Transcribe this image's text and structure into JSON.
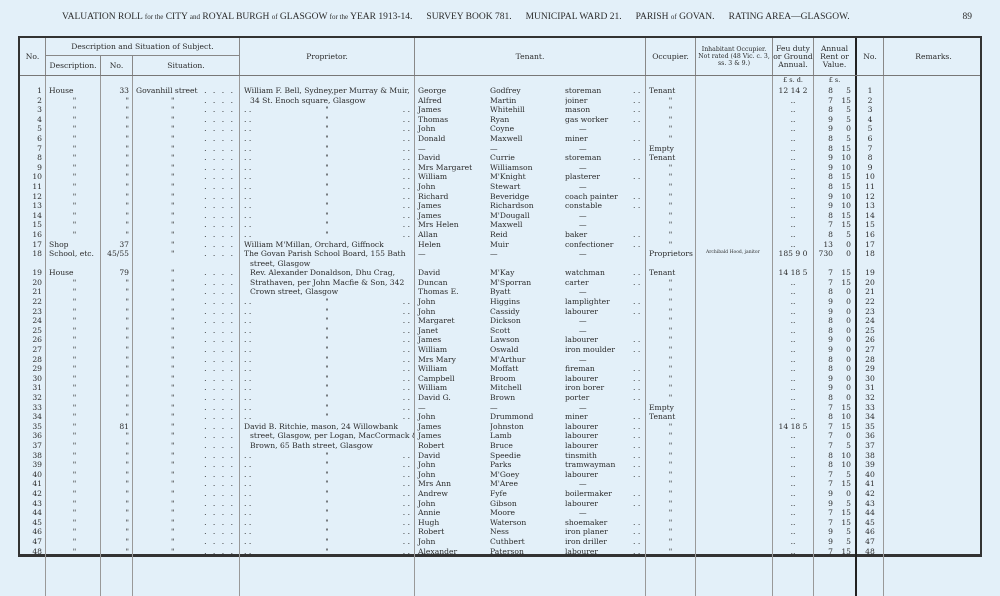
{
  "header": {
    "title": "VALUATION ROLL",
    "t1": "for the",
    "t2": "CITY",
    "t3": "and",
    "t4": "ROYAL BURGH",
    "t5": "of",
    "t6": "GLASGOW",
    "t7": "for the",
    "t8": "YEAR 1913-14.",
    "survey": "SURVEY BOOK 781.",
    "ward": "MUNICIPAL WARD 21.",
    "parish": "PARISH",
    "of": "of",
    "parish_name": "GOVAN.",
    "rating": "RATING AREA—GLASGOW.",
    "page": "89"
  },
  "columns": {
    "no": "No.",
    "desc_group": "Description and Situation of Subject.",
    "description": "Description.",
    "house_no": "No.",
    "situation": "Situation.",
    "proprietor": "Proprietor.",
    "tenant": "Tenant.",
    "occupier": "Occupier.",
    "inhabitant": "Inhabitant Occupier. Not rated (48 Vic. c. 3, ss. 3 & 9.)",
    "feu": "Feu duty or Ground Annual.",
    "rent": "Annual Rent or Value.",
    "no2": "No.",
    "remarks": "Remarks.",
    "feu_units": "£  s.  d.",
    "rent_units": "£  s."
  },
  "ditto": "\"",
  "rows": [
    [
      "1",
      "House",
      "33",
      "Govanhill street",
      "William F. Bell, Sydney,per Murray & Muir,",
      "George",
      "Godfrey",
      "storeman",
      "Tenant",
      "",
      "12 14 2",
      "8",
      "5"
    ],
    [
      "2",
      "\"",
      "\"",
      "\"",
      "34 St. Enoch square, Glasgow",
      "Alfred",
      "Martin",
      "joiner",
      "\"",
      "",
      "..",
      "7",
      "15"
    ],
    [
      "3",
      "\"",
      "\"",
      "\"",
      "\"",
      "James",
      "Whitehill",
      "mason",
      "\"",
      "",
      "..",
      "8",
      "5"
    ],
    [
      "4",
      "\"",
      "\"",
      "\"",
      "\"",
      "Thomas",
      "Ryan",
      "gas worker",
      "\"",
      "",
      "..",
      "9",
      "5"
    ],
    [
      "5",
      "\"",
      "\"",
      "\"",
      "\"",
      "John",
      "Coyne",
      "—",
      "\"",
      "",
      "..",
      "9",
      "0"
    ],
    [
      "6",
      "\"",
      "\"",
      "\"",
      "\"",
      "Donald",
      "Maxwell",
      "miner",
      "\"",
      "",
      "..",
      "8",
      "5"
    ],
    [
      "7",
      "\"",
      "\"",
      "\"",
      "\"",
      "—",
      "—",
      "—",
      "Empty",
      "",
      "..",
      "8",
      "15"
    ],
    [
      "8",
      "\"",
      "\"",
      "\"",
      "\"",
      "David",
      "Currie",
      "storeman",
      "Tenant",
      "",
      "..",
      "9",
      "10"
    ],
    [
      "9",
      "\"",
      "\"",
      "\"",
      "\"",
      "Mrs Margaret",
      "Williamson",
      "—",
      "\"",
      "",
      "..",
      "9",
      "10"
    ],
    [
      "10",
      "\"",
      "\"",
      "\"",
      "\"",
      "William",
      "M'Knight",
      "plasterer",
      "\"",
      "",
      "..",
      "8",
      "15"
    ],
    [
      "11",
      "\"",
      "\"",
      "\"",
      "\"",
      "John",
      "Stewart",
      "—",
      "\"",
      "",
      "..",
      "8",
      "15"
    ],
    [
      "12",
      "\"",
      "\"",
      "\"",
      "\"",
      "Richard",
      "Beveridge",
      "coach painter",
      "\"",
      "",
      "..",
      "9",
      "10"
    ],
    [
      "13",
      "\"",
      "\"",
      "\"",
      "\"",
      "James",
      "Richardson",
      "constable",
      "\"",
      "",
      "..",
      "9",
      "10"
    ],
    [
      "14",
      "\"",
      "\"",
      "\"",
      "\"",
      "James",
      "M'Dougall",
      "—",
      "\"",
      "",
      "..",
      "8",
      "15"
    ],
    [
      "15",
      "\"",
      "\"",
      "\"",
      "\"",
      "Mrs Helen",
      "Maxwell",
      "—",
      "\"",
      "",
      "..",
      "7",
      "15"
    ],
    [
      "16",
      "\"",
      "\"",
      "\"",
      "\"",
      "Allan",
      "Reid",
      "baker",
      "\"",
      "",
      "..",
      "8",
      "5"
    ],
    [
      "17",
      "Shop",
      "37",
      "\"",
      "William M'Millan, Orchard, Giffnock",
      "Helen",
      "Muir",
      "confectioner",
      "\"",
      "",
      "..",
      "13",
      "0"
    ],
    [
      "18",
      "School, etc.",
      "45/55",
      "\"",
      [
        "The Govan Parish School Board, 155 Bath",
        "street, Glasgow"
      ],
      "—",
      "—",
      "—",
      "Proprietors",
      "Archibald Hood, janitor",
      "185 9 0",
      "730",
      "0"
    ],
    [
      "19",
      "House",
      "79",
      "\"",
      "Rev. Alexander Donaldson, Dhu Crag,",
      "David",
      "M'Kay",
      "watchman",
      "Tenant",
      "",
      "14 18 5",
      "7",
      "15"
    ],
    [
      "20",
      "\"",
      "\"",
      "\"",
      "Strathaven, per John Macfie & Son, 342",
      "Duncan",
      "M'Sporran",
      "carter",
      "\"",
      "",
      "..",
      "7",
      "15"
    ],
    [
      "21",
      "\"",
      "\"",
      "\"",
      "Crown street, Glasgow",
      "Thomas E.",
      "Byatt",
      "—",
      "\"",
      "",
      "..",
      "8",
      "0"
    ],
    [
      "22",
      "\"",
      "\"",
      "\"",
      "\"",
      "John",
      "Higgins",
      "lamplighter",
      "\"",
      "",
      "..",
      "9",
      "0"
    ],
    [
      "23",
      "\"",
      "\"",
      "\"",
      "\"",
      "John",
      "Cassidy",
      "labourer",
      "\"",
      "",
      "..",
      "9",
      "0"
    ],
    [
      "24",
      "\"",
      "\"",
      "\"",
      "\"",
      "Margaret",
      "Dickson",
      "—",
      "\"",
      "",
      "..",
      "8",
      "0"
    ],
    [
      "25",
      "\"",
      "\"",
      "\"",
      "\"",
      "Janet",
      "Scott",
      "—",
      "\"",
      "",
      "..",
      "8",
      "0"
    ],
    [
      "26",
      "\"",
      "\"",
      "\"",
      "\"",
      "James",
      "Lawson",
      "labourer",
      "\"",
      "",
      "..",
      "9",
      "0"
    ],
    [
      "27",
      "\"",
      "\"",
      "\"",
      "\"",
      "William",
      "Oswald",
      "iron moulder",
      "\"",
      "",
      "..",
      "9",
      "0"
    ],
    [
      "28",
      "\"",
      "\"",
      "\"",
      "\"",
      "Mrs Mary",
      "M'Arthur",
      "—",
      "\"",
      "",
      "..",
      "8",
      "0"
    ],
    [
      "29",
      "\"",
      "\"",
      "\"",
      "\"",
      "William",
      "Moffatt",
      "fireman",
      "\"",
      "",
      "..",
      "8",
      "0"
    ],
    [
      "30",
      "\"",
      "\"",
      "\"",
      "\"",
      "Campbell",
      "Broom",
      "labourer",
      "\"",
      "",
      "..",
      "9",
      "0"
    ],
    [
      "31",
      "\"",
      "\"",
      "\"",
      "\"",
      "William",
      "Mitchell",
      "iron borer",
      "\"",
      "",
      "..",
      "9",
      "0"
    ],
    [
      "32",
      "\"",
      "\"",
      "\"",
      "\"",
      "David G.",
      "Brown",
      "porter",
      "\"",
      "",
      "..",
      "8",
      "0"
    ],
    [
      "33",
      "\"",
      "\"",
      "\"",
      "\"",
      "—",
      "—",
      "—",
      "Empty",
      "",
      "..",
      "7",
      "15"
    ],
    [
      "34",
      "\"",
      "\"",
      "\"",
      "\"",
      "John",
      "Drummond",
      "miner",
      "Tenant",
      "",
      "..",
      "8",
      "10"
    ],
    [
      "35",
      "\"",
      "81",
      "\"",
      "David B. Ritchie, mason, 24 Willowbank",
      "James",
      "Johnston",
      "labourer",
      "\"",
      "",
      "14 18 5",
      "7",
      "15"
    ],
    [
      "36",
      "\"",
      "\"",
      "\"",
      "street, Glasgow, per Logan, MacCormack &",
      "James",
      "Lamb",
      "labourer",
      "\"",
      "",
      "..",
      "7",
      "0"
    ],
    [
      "37",
      "\"",
      "\"",
      "\"",
      "Brown, 65 Bath street, Glasgow",
      "Robert",
      "Bruce",
      "labourer",
      "\"",
      "",
      "..",
      "7",
      "5"
    ],
    [
      "38",
      "\"",
      "\"",
      "\"",
      "\"",
      "David",
      "Speedie",
      "tinsmith",
      "\"",
      "",
      "..",
      "8",
      "10"
    ],
    [
      "39",
      "\"",
      "\"",
      "\"",
      "\"",
      "John",
      "Parks",
      "tramwayman",
      "\"",
      "",
      "..",
      "8",
      "10"
    ],
    [
      "40",
      "\"",
      "\"",
      "\"",
      "\"",
      "John",
      "M'Goey",
      "labourer",
      "\"",
      "",
      "..",
      "7",
      "5"
    ],
    [
      "41",
      "\"",
      "\"",
      "\"",
      "\"",
      "Mrs Ann",
      "M'Aree",
      "—",
      "\"",
      "",
      "..",
      "7",
      "15"
    ],
    [
      "42",
      "\"",
      "\"",
      "\"",
      "\"",
      "Andrew",
      "Fyfe",
      "boilermaker",
      "\"",
      "",
      "..",
      "9",
      "0"
    ],
    [
      "43",
      "\"",
      "\"",
      "\"",
      "\"",
      "John",
      "Gibson",
      "labourer",
      "\"",
      "",
      "..",
      "9",
      "5"
    ],
    [
      "44",
      "\"",
      "\"",
      "\"",
      "\"",
      "Annie",
      "Moore",
      "—",
      "\"",
      "",
      "..",
      "7",
      "15"
    ],
    [
      "45",
      "\"",
      "\"",
      "\"",
      "\"",
      "Hugh",
      "Waterson",
      "shoemaker",
      "\"",
      "",
      "..",
      "7",
      "15"
    ],
    [
      "46",
      "\"",
      "\"",
      "\"",
      "\"",
      "Robert",
      "Ness",
      "iron planer",
      "\"",
      "",
      "..",
      "9",
      "5"
    ],
    [
      "47",
      "\"",
      "\"",
      "\"",
      "\"",
      "John",
      "Cuthbert",
      "iron driller",
      "\"",
      "",
      "..",
      "9",
      "5"
    ],
    [
      "48",
      "\"",
      "\"",
      "\"",
      "\"",
      "Alexander",
      "Paterson",
      "labourer",
      "\"",
      "",
      "..",
      "7",
      "15"
    ]
  ]
}
